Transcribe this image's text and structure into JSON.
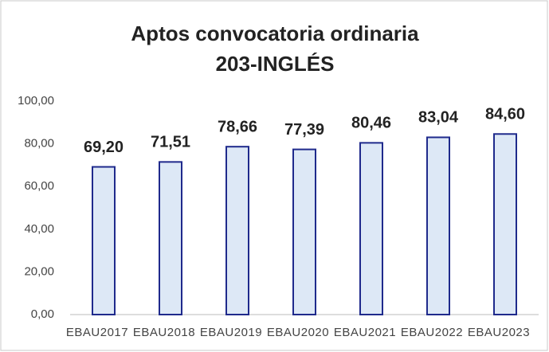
{
  "chart_data": {
    "type": "bar",
    "title": "Aptos convocatoria ordinaria",
    "subtitle": "203-INGLÉS",
    "categories": [
      "EBAU2017",
      "EBAU2018",
      "EBAU2019",
      "EBAU2020",
      "EBAU2021",
      "EBAU2022",
      "EBAU2023"
    ],
    "values": [
      69.2,
      71.51,
      78.66,
      77.39,
      80.46,
      83.04,
      84.6
    ],
    "value_labels": [
      "69,20",
      "71,51",
      "78,66",
      "77,39",
      "80,46",
      "83,04",
      "84,60"
    ],
    "color": "#dde8f6",
    "edge_color": "#1f2a8c",
    "ylim": [
      0,
      100
    ],
    "yticks": [
      {
        "value": 0,
        "label": "0,00"
      },
      {
        "value": 20,
        "label": "20,00"
      },
      {
        "value": 40,
        "label": "40,00"
      },
      {
        "value": 60,
        "label": "60,00"
      },
      {
        "value": 80,
        "label": "80,00"
      },
      {
        "value": 100,
        "label": "100,00"
      }
    ],
    "grid": false
  }
}
